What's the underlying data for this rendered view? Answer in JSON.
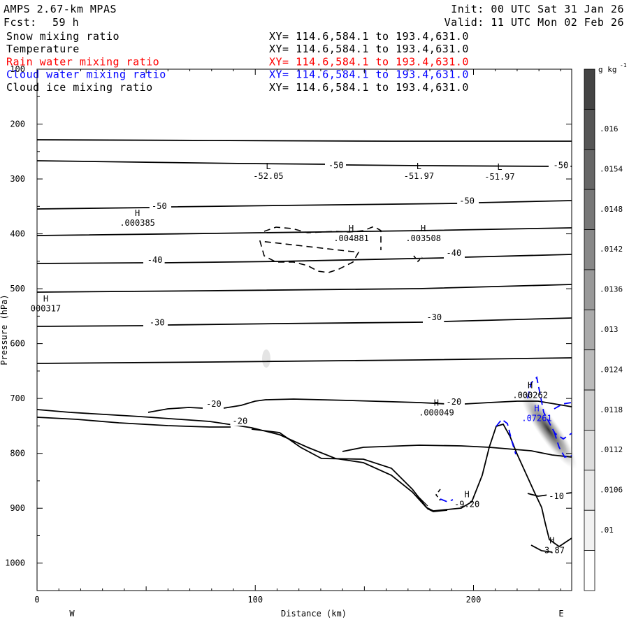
{
  "header": {
    "model": "AMPS 2.67-km MPAS",
    "fcst_label": "Fcst:",
    "fcst_value": "59 h",
    "init": "Init: 00 UTC Sat 31 Jan 26",
    "valid": "Valid: 11 UTC Mon 02 Feb 26"
  },
  "fields": [
    {
      "name": "Snow mixing ratio",
      "xy": "XY= 114.6,584.1 to 193.4,631.0",
      "color": "#000000"
    },
    {
      "name": "Temperature",
      "xy": "XY= 114.6,584.1 to 193.4,631.0",
      "color": "#000000"
    },
    {
      "name": "Rain water mixing ratio",
      "xy": "XY= 114.6,584.1 to 193.4,631.0",
      "color": "#ff0000"
    },
    {
      "name": "Cloud water mixing ratio",
      "xy": "XY= 114.6,584.1 to 193.4,631.0",
      "color": "#0000ff"
    },
    {
      "name": "Cloud ice mixing ratio",
      "xy": "XY= 114.6,584.1 to 193.4,631.0",
      "color": "#000000"
    }
  ],
  "chart_data": {
    "type": "cross-section",
    "xlabel": "Distance (km)",
    "ylabel": "Pressure (hPa)",
    "xlim": [
      0,
      245
    ],
    "ylim": [
      100,
      1050
    ],
    "x_ticks": [
      0,
      100,
      200
    ],
    "y_ticks": [
      200,
      300,
      400,
      500,
      600,
      700,
      800,
      900,
      1000
    ],
    "y_top_label": "100",
    "x_end_labels": {
      "left": "W",
      "right": "E"
    },
    "colorbar": {
      "units": "g kg",
      "units_sup": "-1",
      "ticks": [
        ".016",
        ".0154",
        ".0148",
        ".0142",
        ".0136",
        ".013",
        ".0124",
        ".0118",
        ".0112",
        ".0106",
        ".01"
      ]
    },
    "temperature_contour_labels": [
      {
        "text": "-50",
        "x": 137,
        "p": 280
      },
      {
        "text": "-50",
        "x": 240,
        "p": 280
      },
      {
        "text": "-50",
        "x": 56,
        "p": 355
      },
      {
        "text": "-50",
        "x": 197,
        "p": 345
      },
      {
        "text": "-40",
        "x": 54,
        "p": 453
      },
      {
        "text": "-40",
        "x": 191,
        "p": 440
      },
      {
        "text": "-30",
        "x": 55,
        "p": 567
      },
      {
        "text": "-30",
        "x": 182,
        "p": 557
      },
      {
        "text": "-20",
        "x": 81,
        "p": 715
      },
      {
        "text": "-20",
        "x": 93,
        "p": 746
      },
      {
        "text": "-20",
        "x": 191,
        "p": 711
      },
      {
        "text": "-10",
        "x": 238,
        "p": 883
      }
    ],
    "extrema": [
      {
        "mark": "L",
        "value": "-52.05",
        "x": 106,
        "p": 300
      },
      {
        "mark": "L",
        "value": "-51.97",
        "x": 175,
        "p": 300
      },
      {
        "mark": "L",
        "value": "-51.97",
        "x": 212,
        "p": 301
      },
      {
        "mark": "H",
        "value": ".000385",
        "x": 46,
        "p": 385
      },
      {
        "mark": "H",
        "value": ".004881",
        "x": 144,
        "p": 413
      },
      {
        "mark": "H",
        "value": ".003508",
        "x": 177,
        "p": 413
      },
      {
        "mark": "H",
        "value": "000317",
        "x": 4,
        "p": 541
      },
      {
        "mark": "H",
        "value": ".000049",
        "x": 183,
        "p": 731
      },
      {
        "mark": "H",
        "value": ".000262",
        "x": 226,
        "p": 699
      },
      {
        "mark": "H",
        "value": ".07261",
        "x": 229,
        "p": 741,
        "color": "#0000ff"
      },
      {
        "mark": "H",
        "value": "-9.20",
        "x": 197,
        "p": 898
      },
      {
        "mark": "H",
        "value": "-3.87",
        "x": 236,
        "p": 982
      }
    ]
  }
}
